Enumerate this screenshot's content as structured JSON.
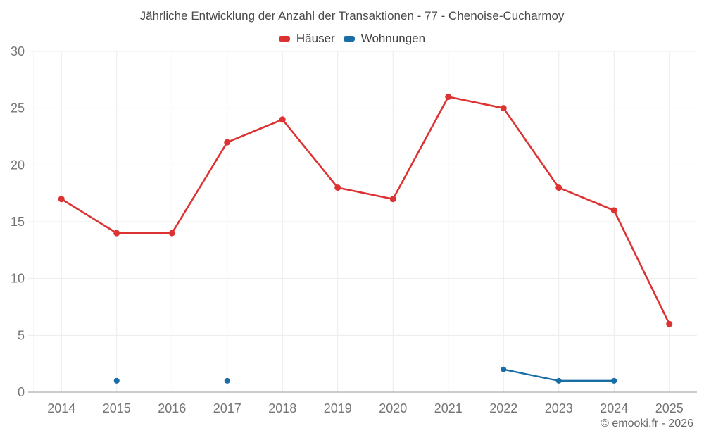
{
  "copyright": "© emooki.fr - 2026",
  "chart_data": {
    "type": "line",
    "title": "Jährliche Entwicklung der Anzahl der Transaktionen - 77 - Chenoise-Cucharmoy",
    "categories": [
      "2014",
      "2015",
      "2016",
      "2017",
      "2018",
      "2019",
      "2020",
      "2021",
      "2022",
      "2023",
      "2024",
      "2025"
    ],
    "series": [
      {
        "name": "Häuser",
        "color": "#dc3232",
        "values": [
          17,
          14,
          14,
          22,
          24,
          18,
          17,
          26,
          25,
          18,
          16,
          6
        ]
      },
      {
        "name": "Wohnungen",
        "color": "#1a6ea6",
        "values": [
          null,
          1,
          null,
          1,
          null,
          null,
          null,
          null,
          2,
          1,
          1,
          null
        ]
      }
    ],
    "xlabel": "",
    "ylabel": "",
    "ylim": [
      0,
      30
    ],
    "ytick_step": 5,
    "yticks": [
      0,
      5,
      10,
      15,
      20,
      25,
      30
    ],
    "grid": true,
    "legend_position": "top",
    "style": {
      "grid_color": "#ececec",
      "axis_color": "#9a9a9a",
      "tick_label_color": "#757575",
      "title_color": "#4a4a4a",
      "legend_label_color": "#404040",
      "copyright_color": "#666666",
      "background": "#ffffff"
    }
  }
}
